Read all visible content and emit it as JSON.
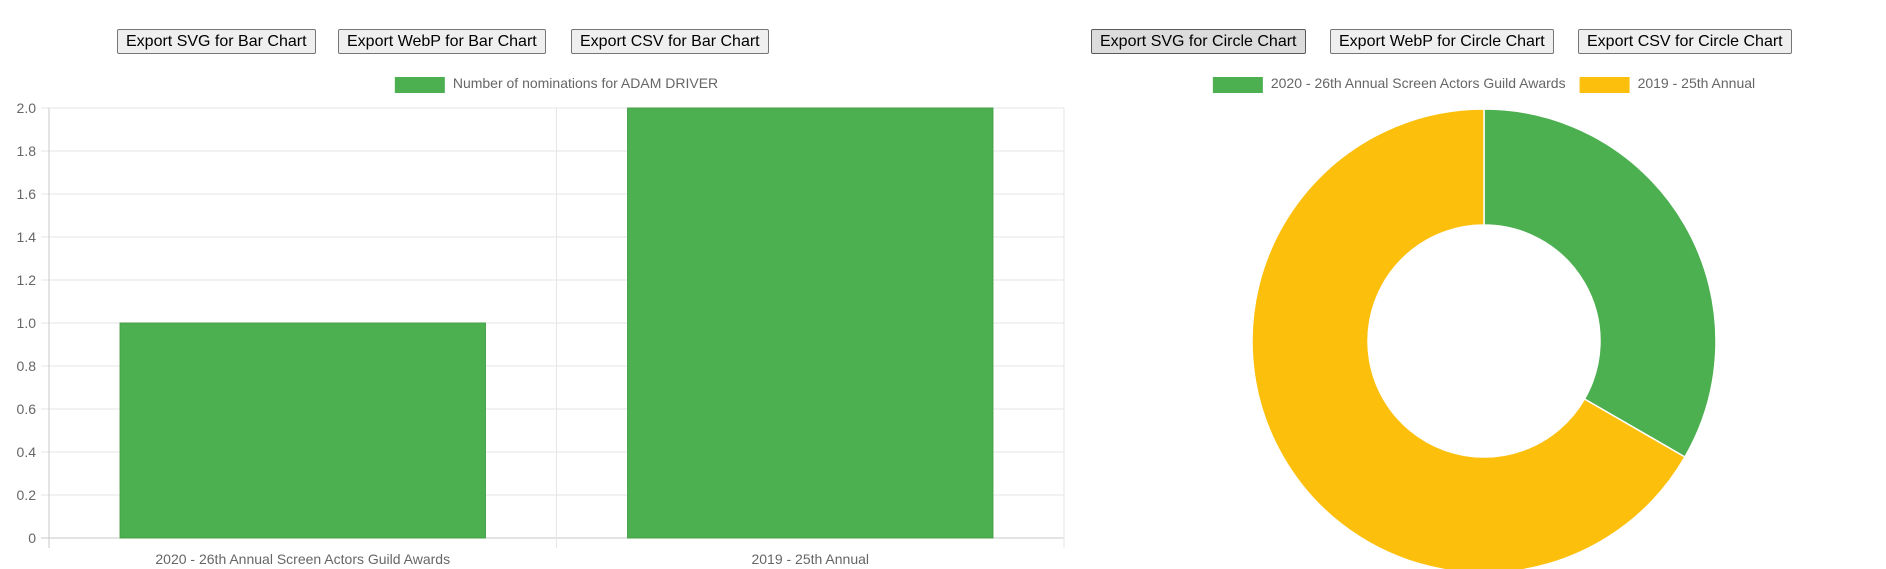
{
  "toolbar_bar": {
    "svg_label": "Export SVG for Bar Chart",
    "webp_label": "Export WebP for Bar Chart",
    "csv_label": "Export CSV for Bar Chart"
  },
  "toolbar_circle": {
    "svg_label": "Export SVG for Circle Chart",
    "webp_label": "Export WebP for Circle Chart",
    "csv_label": "Export CSV for Circle Chart"
  },
  "chart_data": [
    {
      "type": "bar",
      "categories": [
        "2020 - 26th Annual Screen Actors Guild Awards",
        "2019 - 25th Annual"
      ],
      "series": [
        {
          "name": "Number of nominations for ADAM DRIVER",
          "values": [
            1,
            2
          ],
          "color": "#4caf50"
        }
      ],
      "ylim": [
        0,
        2.0
      ],
      "yticks": [
        "0",
        "0.2",
        "0.4",
        "0.6",
        "0.8",
        "1.0",
        "1.2",
        "1.4",
        "1.6",
        "1.8",
        "2.0"
      ],
      "grid": true,
      "legend": "top"
    },
    {
      "type": "pie",
      "variant": "doughnut",
      "labels": [
        "2020 - 26th Annual Screen Actors Guild Awards",
        "2019 - 25th Annual"
      ],
      "values": [
        1,
        2
      ],
      "colors": [
        "#4caf50",
        "#fbbf0c"
      ],
      "legend": "top"
    }
  ]
}
